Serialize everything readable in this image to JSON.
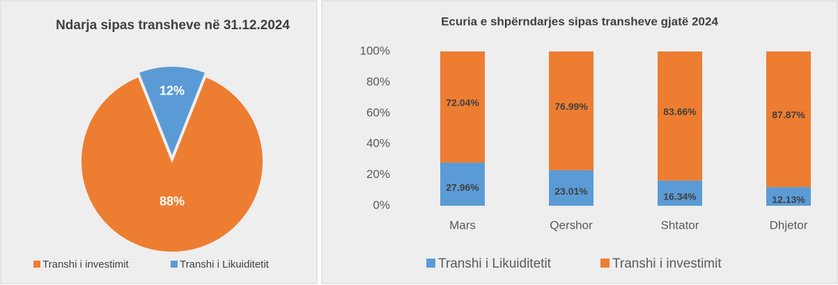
{
  "chart_data": [
    {
      "type": "pie",
      "title": "Ndarja sipas transheve në 31.12.2024",
      "categories": [
        "Transhi i investimit",
        "Transhi i Likuiditetit"
      ],
      "values": [
        88,
        12
      ],
      "value_labels": [
        "88%",
        "12%"
      ],
      "colors": [
        "#ed7d31",
        "#5b9bd5"
      ],
      "legend": "bottom"
    },
    {
      "type": "stacked_bar",
      "title": "Ecuria e shpërndarjes sipas transheve gjatë 2024",
      "categories": [
        "Mars",
        "Qershor",
        "Shtator",
        "Dhjetor"
      ],
      "series": [
        {
          "name": "Transhi i Likuiditetit",
          "color": "#5b9bd5",
          "values": [
            27.96,
            23.01,
            16.34,
            12.13
          ],
          "value_labels": [
            "27.96%",
            "23.01%",
            "16.34%",
            "12.13%"
          ]
        },
        {
          "name": "Transhi i investimit",
          "color": "#ed7d31",
          "values": [
            72.04,
            76.99,
            83.66,
            87.87
          ],
          "value_labels": [
            "72.04%",
            "76.99%",
            "83.66%",
            "87.87%"
          ]
        }
      ],
      "ylim": [
        0,
        100
      ],
      "yticks": [
        {
          "value": 0,
          "label": "0%"
        },
        {
          "value": 20,
          "label": "20%"
        },
        {
          "value": 40,
          "label": "40%"
        },
        {
          "value": 60,
          "label": "60%"
        },
        {
          "value": 80,
          "label": "80%"
        },
        {
          "value": 100,
          "label": "100%"
        }
      ],
      "grid": false,
      "legend": "bottom"
    }
  ]
}
